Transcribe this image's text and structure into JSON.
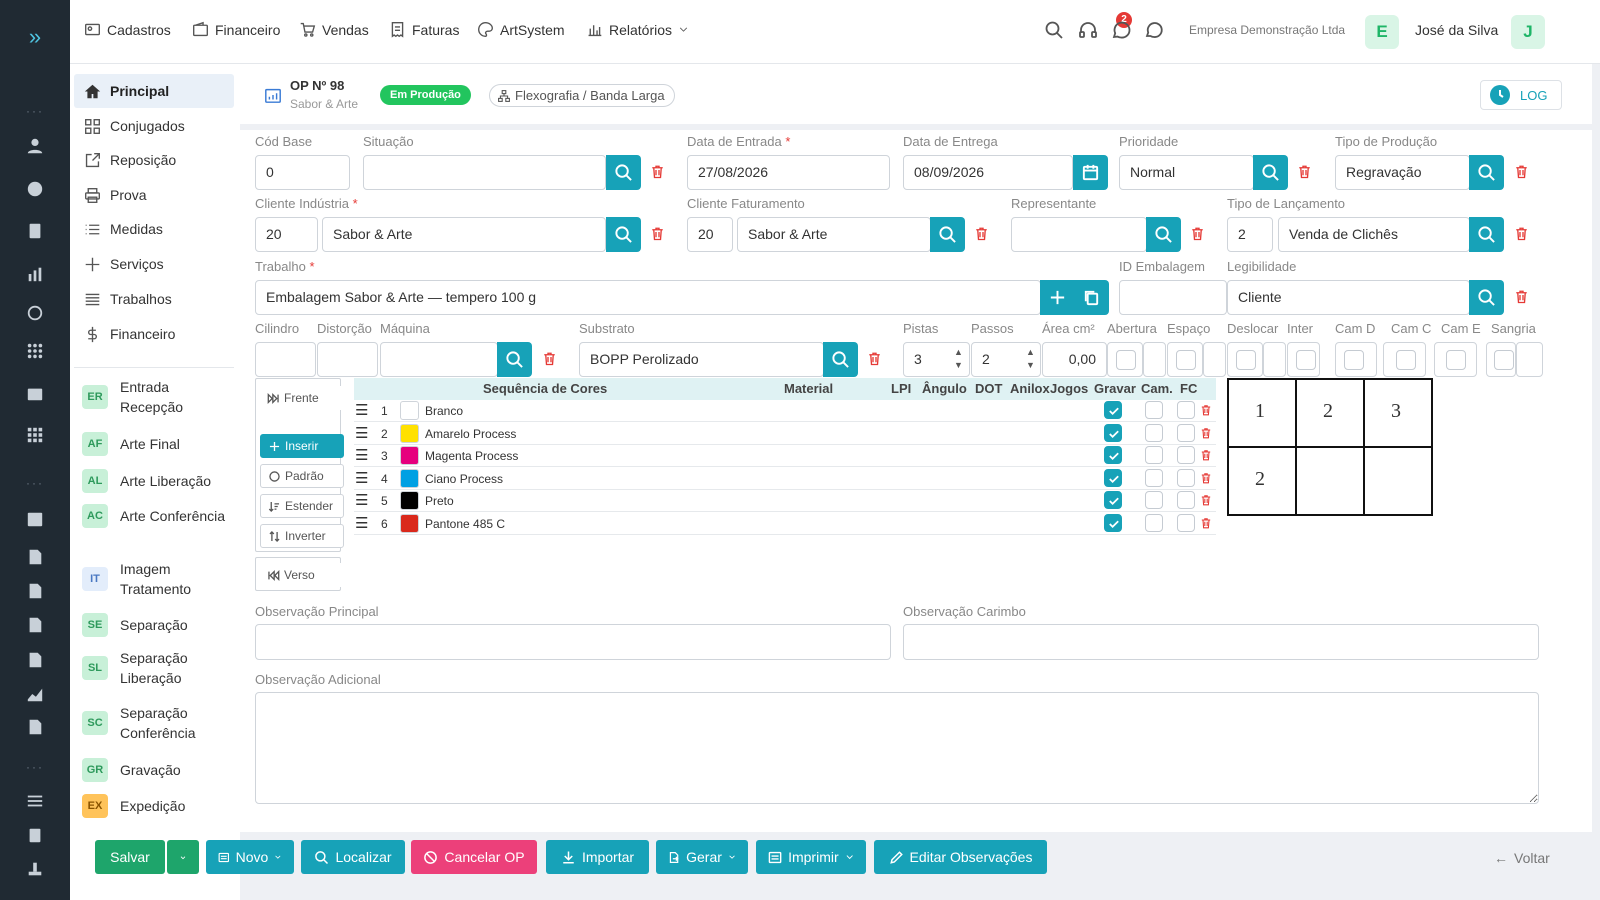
{
  "topbar": {
    "menus": [
      "Cadastros",
      "Financeiro",
      "Vendas",
      "Faturas",
      "ArtSystem",
      "Relatórios"
    ],
    "notification_count": "2",
    "company": "Empresa Demonstração Ltda",
    "company_initial": "E",
    "user": "José da Silva",
    "user_initial": "J"
  },
  "sidebar": {
    "items": [
      "Principal",
      "Conjugados",
      "Reposição",
      "Prova",
      "Medidas",
      "Serviços",
      "Trabalhos",
      "Financeiro"
    ],
    "stages": [
      {
        "code": "ER",
        "label": "Entrada Recepção",
        "color": "#c8f0d8",
        "text": "#2e9a5c"
      },
      {
        "code": "AF",
        "label": "Arte Final",
        "color": "#c8f0d8",
        "text": "#2e9a5c"
      },
      {
        "code": "AL",
        "label": "Arte Liberação",
        "color": "#c8f0d8",
        "text": "#2e9a5c"
      },
      {
        "code": "AC",
        "label": "Arte Conferência",
        "color": "#c8f0d8",
        "text": "#2e9a5c"
      },
      {
        "code": "IT",
        "label": "Imagem Tratamento",
        "color": "#e3edfb",
        "text": "#4a78c2"
      },
      {
        "code": "SE",
        "label": "Separação",
        "color": "#c8f0d8",
        "text": "#2e9a5c"
      },
      {
        "code": "SL",
        "label": "Separação Liberação",
        "color": "#c8f0d8",
        "text": "#2e9a5c"
      },
      {
        "code": "SC",
        "label": "Separação Conferência",
        "color": "#c8f0d8",
        "text": "#2e9a5c"
      },
      {
        "code": "GR",
        "label": "Gravação",
        "color": "#c8f0d8",
        "text": "#2e9a5c"
      },
      {
        "code": "EX",
        "label": "Expedição",
        "color": "#ffc35a",
        "text": "#8a5300"
      }
    ]
  },
  "header": {
    "op_number": "OP Nº 98",
    "client": "Sabor & Arte",
    "status": "Em Produção",
    "process": "Flexografia / Banda Larga",
    "log": "LOG"
  },
  "form": {
    "cod_base": {
      "label": "Cód Base",
      "value": "0"
    },
    "situacao": {
      "label": "Situação",
      "value": ""
    },
    "data_entrada": {
      "label": "Data de Entrada",
      "value": "27/08/2026"
    },
    "data_entrega": {
      "label": "Data de Entrega",
      "value": "08/09/2026"
    },
    "prioridade": {
      "label": "Prioridade",
      "value": "Normal"
    },
    "tipo_producao": {
      "label": "Tipo de Produção",
      "value": "Regravação"
    },
    "cliente_industria": {
      "label": "Cliente Indústria",
      "code": "20",
      "value": "Sabor & Arte"
    },
    "cliente_faturamento": {
      "label": "Cliente Faturamento",
      "code": "20",
      "value": "Sabor & Arte"
    },
    "representante": {
      "label": "Representante",
      "value": ""
    },
    "tipo_lancamento": {
      "label": "Tipo de Lançamento",
      "code": "2",
      "value": "Venda de Clichês"
    },
    "trabalho": {
      "label": "Trabalho",
      "value": "Embalagem Sabor & Arte — tempero 100 g"
    },
    "id_embalagem": {
      "label": "ID Embalagem",
      "value": ""
    },
    "legibilidade": {
      "label": "Legibilidade",
      "value": "Cliente"
    },
    "cilindro": {
      "label": "Cilindro",
      "value": ""
    },
    "distorcao": {
      "label": "Distorção",
      "value": ""
    },
    "maquina": {
      "label": "Máquina",
      "value": ""
    },
    "substrato": {
      "label": "Substrato",
      "value": "BOPP Perolizado"
    },
    "pistas": {
      "label": "Pistas",
      "value": "3"
    },
    "passos": {
      "label": "Passos",
      "value": "2"
    },
    "area": {
      "label": "Área cm²",
      "value": "0,00"
    },
    "checks_labels": [
      "Abertura",
      "Espaço",
      "Deslocar",
      "Inter",
      "Cam D",
      "Cam C",
      "Cam E",
      "Sangria"
    ]
  },
  "colors": {
    "side_buttons": [
      "Frente",
      "Inserir",
      "Padrão",
      "Estender",
      "Inverter",
      "Verso"
    ],
    "headers": [
      "Sequência de Cores",
      "Material",
      "LPI",
      "Ângulo",
      "DOT",
      "Anilox",
      "Jogos",
      "Gravar",
      "Cam.",
      "FC"
    ],
    "rows": [
      {
        "n": "1",
        "name": "Branco",
        "swatch": "#ffffff",
        "gravar": true
      },
      {
        "n": "2",
        "name": "Amarelo Process",
        "swatch": "#ffe100",
        "gravar": true
      },
      {
        "n": "3",
        "name": "Magenta Process",
        "swatch": "#e6007e",
        "gravar": true
      },
      {
        "n": "4",
        "name": "Ciano Process",
        "swatch": "#00a0e3",
        "gravar": true
      },
      {
        "n": "5",
        "name": "Preto",
        "swatch": "#000000",
        "gravar": true
      },
      {
        "n": "6",
        "name": "Pantone 485 C",
        "swatch": "#da291c",
        "gravar": true
      }
    ],
    "grid": [
      "1",
      "2",
      "3",
      "2",
      "",
      ""
    ]
  },
  "observations": {
    "principal": "Observação Principal",
    "carimbo": "Observação Carimbo",
    "adicional": "Observação Adicional"
  },
  "actions": {
    "salvar": "Salvar",
    "novo": "Novo",
    "localizar": "Localizar",
    "cancelar": "Cancelar OP",
    "importar": "Importar",
    "gerar": "Gerar",
    "imprimir": "Imprimir",
    "editar": "Editar Observações",
    "voltar": "Voltar"
  }
}
